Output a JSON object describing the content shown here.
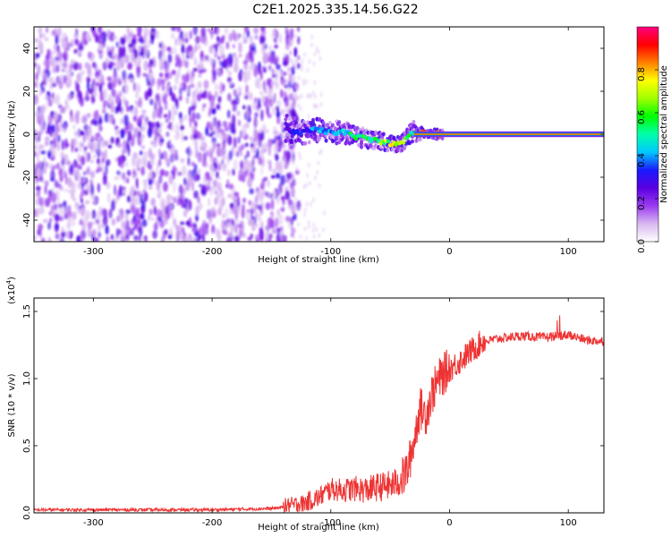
{
  "figure": {
    "title": "C2E1.2025.335.14.56.G22"
  },
  "chart_data": [
    {
      "type": "heatmap",
      "name": "spectrogram",
      "xlabel": "Height of straight line (km)",
      "ylabel": "Frequency (Hz)",
      "xlim": [
        -350,
        130
      ],
      "ylim": [
        -50,
        50
      ],
      "xticks": [
        -300,
        -200,
        -100,
        0,
        100
      ],
      "yticks": [
        -40,
        -20,
        0,
        20,
        40
      ],
      "xtick_labels": [
        "-300",
        "-200",
        "-100",
        "0",
        "100"
      ],
      "ytick_labels": [
        "-40",
        "-20",
        "0",
        "20",
        "40"
      ],
      "noise_region_x": [
        -350,
        -135
      ],
      "signal_track": {
        "x": [
          -138,
          -125,
          -115,
          -100,
          -90,
          -80,
          -70,
          -60,
          -52,
          -45,
          -40,
          -35,
          -30,
          -25,
          -20,
          -15,
          -10,
          -5,
          0,
          20,
          40,
          60,
          80,
          100,
          120,
          130
        ],
        "freq_hz": [
          2,
          1,
          2,
          1,
          1,
          -1,
          -2,
          -3,
          -4,
          -5,
          -4,
          -1,
          1,
          0,
          1,
          0,
          0,
          0,
          0,
          0,
          0,
          0,
          0,
          0,
          0,
          0
        ],
        "amplitude": [
          0.25,
          0.35,
          0.4,
          0.45,
          0.5,
          0.55,
          0.6,
          0.65,
          0.7,
          0.75,
          0.7,
          0.6,
          0.5,
          0.8,
          0.85,
          0.9,
          0.9,
          0.95,
          0.95,
          0.95,
          0.95,
          0.95,
          0.95,
          0.95,
          0.95,
          0.95
        ]
      },
      "colorbar": {
        "label": "Normalized spectral amplitude",
        "range": [
          0,
          1
        ],
        "ticks": [
          "0.0",
          "0.2",
          "0.4",
          "0.6",
          "0.8"
        ],
        "colors": [
          "#ffffff",
          "#d8b8f0",
          "#9a3cf0",
          "#5a00e0",
          "#1a1aff",
          "#00c8ff",
          "#00ffaa",
          "#00ff00",
          "#a0ff00",
          "#ffff00",
          "#ff8000",
          "#ff0000",
          "#ff0080"
        ]
      }
    },
    {
      "type": "line",
      "name": "snr",
      "xlabel": "Height of straight line (km)",
      "ylabel": "SNR (10 * v/v)",
      "scale_label": "(x10",
      "scale_exponent": "4",
      "xlim": [
        -350,
        130
      ],
      "ylim": [
        0,
        1.6
      ],
      "xticks": [
        -300,
        -200,
        -100,
        0,
        100
      ],
      "yticks": [
        0.0,
        0.5,
        1.0,
        1.5
      ],
      "xtick_labels": [
        "-300",
        "-200",
        "-100",
        "0",
        "100"
      ],
      "ytick_labels": [
        "0.0",
        "0.5",
        "1.0",
        "1.5"
      ],
      "color": "#ee3333",
      "series": {
        "x": [
          -350,
          -300,
          -250,
          -200,
          -150,
          -125,
          -110,
          -100,
          -90,
          -80,
          -70,
          -60,
          -50,
          -40,
          -35,
          -30,
          -25,
          -20,
          -15,
          -10,
          -5,
          0,
          10,
          20,
          30,
          40,
          60,
          80,
          100,
          115,
          130
        ],
        "y": [
          0.02,
          0.02,
          0.02,
          0.02,
          0.03,
          0.05,
          0.1,
          0.16,
          0.15,
          0.16,
          0.15,
          0.17,
          0.18,
          0.22,
          0.3,
          0.5,
          0.75,
          0.7,
          0.85,
          0.95,
          1.0,
          1.05,
          1.12,
          1.2,
          1.27,
          1.29,
          1.31,
          1.3,
          1.32,
          1.28,
          1.27
        ]
      }
    }
  ]
}
